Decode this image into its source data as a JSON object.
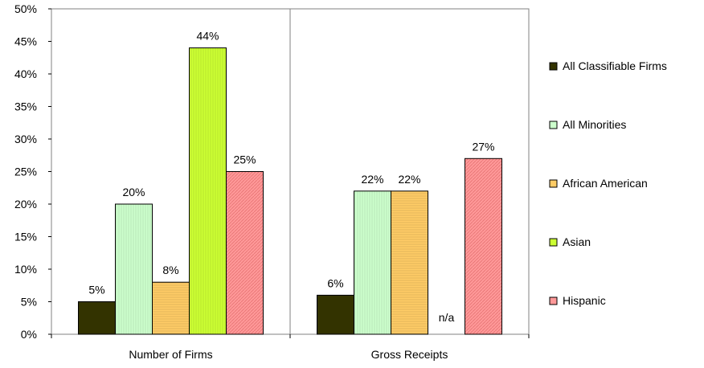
{
  "chart_data": {
    "type": "bar",
    "categories": [
      "Number of Firms",
      "Gross Receipts"
    ],
    "series": [
      {
        "name": "All Classifiable Firms",
        "values": [
          5,
          6
        ],
        "labels": [
          "5%",
          "6%"
        ],
        "color": "#333300",
        "pattern": "solid"
      },
      {
        "name": "All Minorities",
        "values": [
          20,
          22
        ],
        "labels": [
          "20%",
          "22%"
        ],
        "color": "#ccffcc",
        "pattern": "vertical-lines"
      },
      {
        "name": "African American",
        "values": [
          8,
          22
        ],
        "labels": [
          "8%",
          "22%"
        ],
        "color": "#ffcc66",
        "pattern": "horizontal-lines"
      },
      {
        "name": "Asian",
        "values": [
          44,
          null
        ],
        "labels": [
          "44%",
          "n/a"
        ],
        "color": "#ccff33",
        "pattern": "vertical-lines"
      },
      {
        "name": "Hispanic",
        "values": [
          25,
          27
        ],
        "labels": [
          "25%",
          "27%"
        ],
        "color": "#ff9999",
        "pattern": "diagonal-lines"
      }
    ],
    "ylim": [
      0,
      50
    ],
    "yticks": [
      "0%",
      "5%",
      "10%",
      "15%",
      "20%",
      "25%",
      "30%",
      "35%",
      "40%",
      "45%",
      "50%"
    ],
    "grid": false,
    "legend_position": "right"
  }
}
